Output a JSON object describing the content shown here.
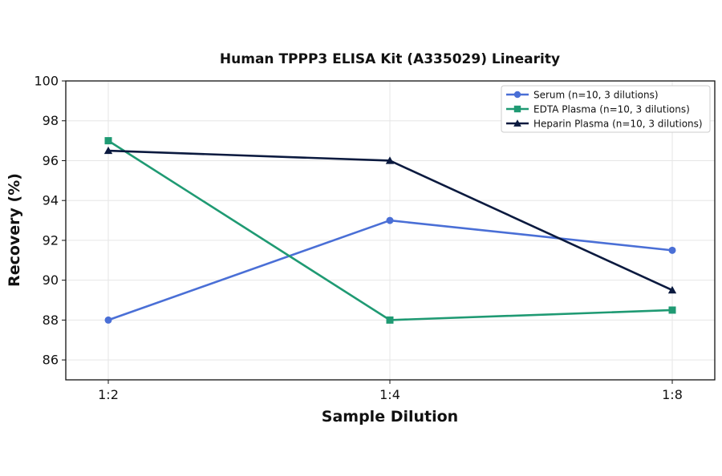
{
  "chart_data": {
    "type": "line",
    "title": "Human TPPP3 ELISA Kit (A335029) Linearity",
    "xlabel": "Sample Dilution",
    "ylabel": "Recovery (%)",
    "categories": [
      "1:2",
      "1:4",
      "1:8"
    ],
    "ylim": [
      85,
      100
    ],
    "yticks": [
      86,
      88,
      90,
      92,
      94,
      96,
      98,
      100
    ],
    "grid": true,
    "legend_position": "top-right",
    "series": [
      {
        "name": "Serum (n=10, 3 dilutions)",
        "values": [
          88,
          93,
          91.5
        ],
        "color": "#4a6fd6",
        "marker": "circle"
      },
      {
        "name": "EDTA Plasma (n=10, 3 dilutions)",
        "values": [
          97,
          88,
          88.5
        ],
        "color": "#1f9a73",
        "marker": "square"
      },
      {
        "name": "Heparin Plasma (n=10, 3 dilutions)",
        "values": [
          96.5,
          96,
          89.5
        ],
        "color": "#0b1a3f",
        "marker": "triangle"
      }
    ]
  }
}
